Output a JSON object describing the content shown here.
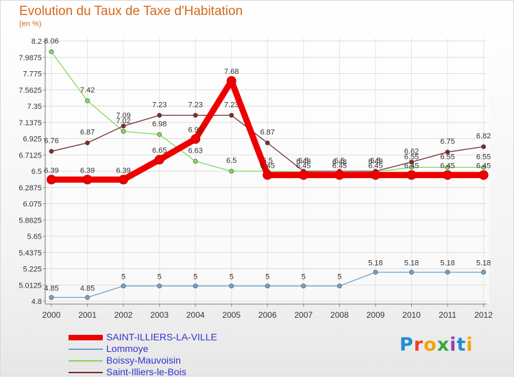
{
  "header": {
    "title": "Evolution du Taux de Taxe d'Habitation",
    "subtitle": "(en %)"
  },
  "logo": {
    "text": "Proxiti"
  },
  "chart_data": {
    "type": "line",
    "title": "Evolution du Taux de Taxe d'Habitation",
    "ylabel": "(en %)",
    "x": [
      "2000",
      "2001",
      "2002",
      "2003",
      "2004",
      "2005",
      "2006",
      "2007",
      "2008",
      "2009",
      "2010",
      "2011",
      "2012"
    ],
    "ylim": [
      4.8,
      8.2
    ],
    "yticks": [
      "8.2",
      "7.9875",
      "7.775",
      "7.5625",
      "7.35",
      "7.1375",
      "6.925",
      "6.7125",
      "6.5",
      "6.2875",
      "6.075",
      "5.8625",
      "5.65",
      "5.4375",
      "5.225",
      "5.0125",
      "4.8"
    ],
    "grid": true,
    "legend_position": "bottom-left",
    "series": [
      {
        "name": "SAINT-ILLIERS-LA-VILLE",
        "color": "#ee0000",
        "values": [
          6.39,
          6.39,
          6.39,
          6.65,
          6.92,
          7.68,
          6.45,
          6.45,
          6.45,
          6.45,
          6.45,
          6.45,
          6.45
        ]
      },
      {
        "name": "Lommoye",
        "color": "#6aa3d0",
        "values": [
          4.85,
          4.85,
          5,
          5,
          5,
          5,
          5,
          5,
          5,
          5.18,
          5.18,
          5.18,
          5.18
        ]
      },
      {
        "name": "Boissy-Mauvoisin",
        "color": "#7ed957",
        "values": [
          8.06,
          7.42,
          7.02,
          6.98,
          6.63,
          6.5,
          6.5,
          6.49,
          6.48,
          6.49,
          6.55,
          6.55,
          6.55
        ]
      },
      {
        "name": "Saint-Illiers-le-Bois",
        "color": "#7a2b2b",
        "values": [
          6.76,
          6.87,
          7.09,
          7.23,
          7.23,
          7.23,
          6.87,
          6.5,
          6.5,
          6.5,
          6.62,
          6.75,
          6.82
        ]
      }
    ]
  }
}
